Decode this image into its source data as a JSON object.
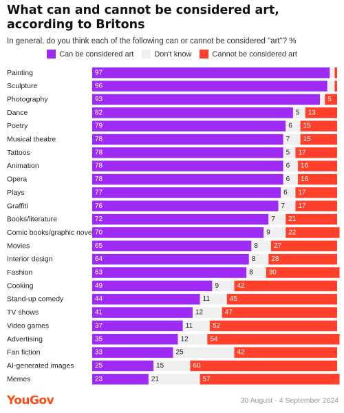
{
  "header": {
    "title": "What can and cannot be considered art, according to Britons",
    "subtitle": "In general, do you think each of the following can or cannot be considered \"art\"? %"
  },
  "footer": {
    "brand": "YouGov",
    "date": "30 August - 4 September 2024"
  },
  "chart_data": {
    "type": "bar",
    "orientation": "horizontal",
    "stacked": true,
    "legend_position": "top-center",
    "xlim": [
      0,
      100
    ],
    "categories": [
      "Painting",
      "Sculpture",
      "Photography",
      "Dance",
      "Poetry",
      "Musical theatre",
      "Tattoos",
      "Animation",
      "Opera",
      "Plays",
      "Graffiti",
      "Books/literature",
      "Comic books/graphic novels",
      "Movies",
      "Interior design",
      "Fashion",
      "Cooking",
      "Stand-up comedy",
      "TV shows",
      "Video games",
      "Advertising",
      "Fan fiction",
      "AI-generated images",
      "Memes"
    ],
    "series": [
      {
        "name": "Can be considered art",
        "color": "#9D2BF3",
        "values": [
          97,
          96,
          93,
          82,
          79,
          78,
          78,
          78,
          78,
          77,
          76,
          72,
          70,
          65,
          64,
          63,
          49,
          44,
          41,
          37,
          35,
          33,
          25,
          23
        ]
      },
      {
        "name": "Don't know",
        "color": "#F0F0F0",
        "values": [
          2,
          3,
          2,
          5,
          6,
          7,
          5,
          6,
          6,
          6,
          7,
          7,
          9,
          8,
          8,
          8,
          9,
          11,
          12,
          11,
          12,
          25,
          15,
          21
        ]
      },
      {
        "name": "Cannot be considered art",
        "color": "#FF412C",
        "values": [
          1,
          1,
          5,
          13,
          15,
          15,
          17,
          16,
          16,
          17,
          17,
          21,
          22,
          27,
          28,
          30,
          42,
          45,
          47,
          52,
          54,
          42,
          60,
          57
        ]
      }
    ],
    "data_labels": [
      [
        "97",
        "",
        ""
      ],
      [
        "96",
        "",
        ""
      ],
      [
        "93",
        "",
        "5"
      ],
      [
        "82",
        "5",
        "13"
      ],
      [
        "79",
        "6",
        "15"
      ],
      [
        "78",
        "7",
        "15"
      ],
      [
        "78",
        "5",
        "17"
      ],
      [
        "78",
        "6",
        "16"
      ],
      [
        "78",
        "6",
        "16"
      ],
      [
        "77",
        "6",
        "17"
      ],
      [
        "76",
        "7",
        "17"
      ],
      [
        "72",
        "7",
        "21"
      ],
      [
        "70",
        "9",
        "22"
      ],
      [
        "65",
        "8",
        "27"
      ],
      [
        "64",
        "8",
        "28"
      ],
      [
        "63",
        "8",
        "30"
      ],
      [
        "49",
        "9",
        "42"
      ],
      [
        "44",
        "11",
        "45"
      ],
      [
        "41",
        "12",
        "47"
      ],
      [
        "37",
        "11",
        "52"
      ],
      [
        "35",
        "12",
        "54"
      ],
      [
        "33",
        "25",
        "42"
      ],
      [
        "25",
        "15",
        "60"
      ],
      [
        "23",
        "21",
        "57"
      ]
    ]
  }
}
